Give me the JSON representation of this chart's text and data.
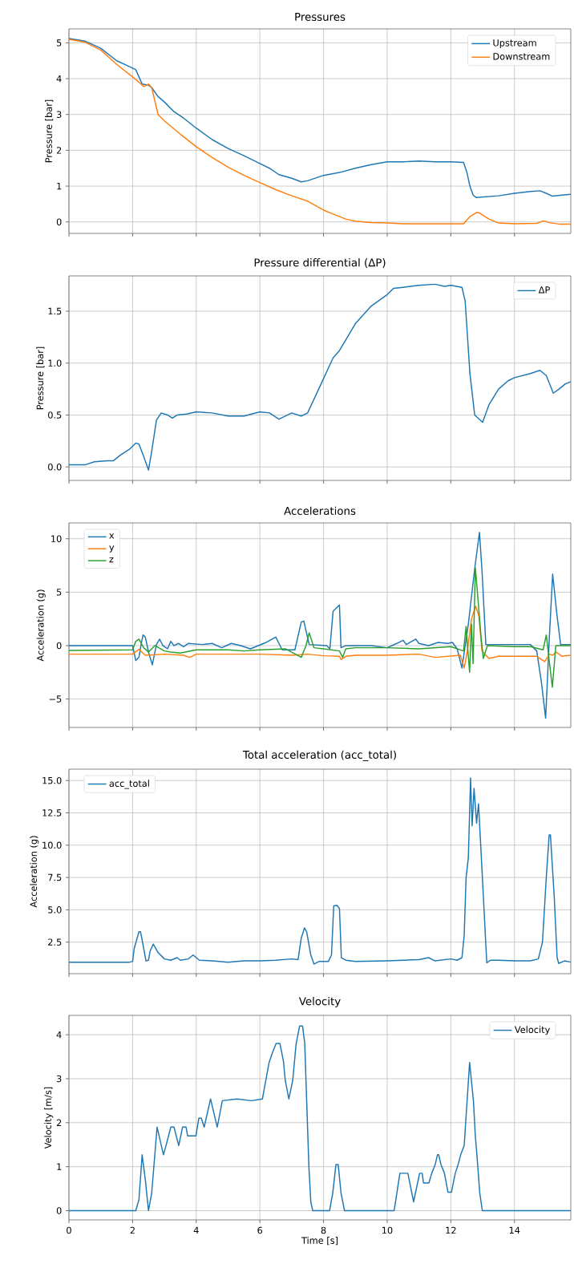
{
  "chart_data": [
    {
      "type": "line",
      "title": "Pressures",
      "ylabel": "Pressure [bar]",
      "xlim": [
        0,
        15.77
      ],
      "ylim": [
        -0.32,
        5.39
      ],
      "xticks": [
        0,
        2,
        4,
        6,
        8,
        10,
        12,
        14
      ],
      "yticks": [
        0,
        1,
        2,
        3,
        4,
        5
      ],
      "tick_labels": "y",
      "grid": true,
      "legend": "top right",
      "series": [
        {
          "name": "Upstream",
          "color": "#1f77b4",
          "x": [
            0,
            0.5,
            1,
            1.5,
            1.8,
            2.1,
            2.3,
            2.5,
            2.6,
            2.8,
            3,
            3.3,
            3.6,
            4,
            4.5,
            5,
            5.5,
            6,
            6.3,
            6.6,
            7,
            7.3,
            7.5,
            8,
            8.5,
            9,
            9.5,
            10,
            10.5,
            11,
            11.5,
            12,
            12.4,
            12.5,
            12.6,
            12.7,
            12.8,
            13.5,
            14,
            14.5,
            14.8,
            15,
            15.2,
            15.5,
            15.77
          ],
          "values": [
            5.12,
            5.05,
            4.85,
            4.5,
            4.38,
            4.25,
            3.85,
            3.82,
            3.75,
            3.5,
            3.35,
            3.08,
            2.9,
            2.62,
            2.3,
            2.05,
            1.85,
            1.63,
            1.5,
            1.32,
            1.22,
            1.12,
            1.15,
            1.3,
            1.38,
            1.5,
            1.6,
            1.68,
            1.68,
            1.7,
            1.68,
            1.68,
            1.66,
            1.4,
            1.0,
            0.75,
            0.68,
            0.73,
            0.8,
            0.85,
            0.87,
            0.8,
            0.72,
            0.75,
            0.77
          ]
        },
        {
          "name": "Downstream",
          "color": "#ff7f0e",
          "x": [
            0,
            0.5,
            1,
            1.5,
            2,
            2.2,
            2.35,
            2.5,
            2.6,
            2.8,
            3,
            3.5,
            4,
            4.5,
            5,
            5.5,
            6,
            6.5,
            7,
            7.5,
            8,
            8.3,
            8.7,
            9,
            9.5,
            10,
            10.5,
            11,
            12,
            12.4,
            12.6,
            12.8,
            12.9,
            13.2,
            13.5,
            14,
            14.7,
            14.9,
            15.1,
            15.4,
            15.77
          ],
          "values": [
            5.1,
            5.02,
            4.8,
            4.4,
            4.05,
            3.9,
            3.78,
            3.85,
            3.75,
            3.0,
            2.82,
            2.45,
            2.1,
            1.8,
            1.53,
            1.3,
            1.1,
            0.9,
            0.73,
            0.58,
            0.33,
            0.22,
            0.08,
            0.02,
            -0.02,
            -0.03,
            -0.05,
            -0.05,
            -0.05,
            -0.05,
            0.15,
            0.26,
            0.25,
            0.08,
            -0.03,
            -0.05,
            -0.04,
            0.03,
            -0.02,
            -0.06,
            -0.06
          ]
        }
      ]
    },
    {
      "type": "line",
      "title": "Pressure differential (ΔP)",
      "ylabel": "Pressure [bar]",
      "xlim": [
        0,
        15.77
      ],
      "ylim": [
        -0.13,
        1.84
      ],
      "xticks": [
        0,
        2,
        4,
        6,
        8,
        10,
        12,
        14
      ],
      "yticks": [
        {
          "value": 0,
          "label": "0.0"
        },
        0.5,
        {
          "value": 1,
          "label": "1.0"
        },
        1.5
      ],
      "tick_labels": "y",
      "grid": true,
      "legend": "top right",
      "series": [
        {
          "name": "ΔP",
          "color": "#1f77b4",
          "x": [
            0,
            0.5,
            0.8,
            1.2,
            1.4,
            1.6,
            1.9,
            2.1,
            2.2,
            2.35,
            2.5,
            2.6,
            2.75,
            2.9,
            3.1,
            3.25,
            3.4,
            3.7,
            4,
            4.5,
            5,
            5.5,
            6,
            6.3,
            6.6,
            7,
            7.3,
            7.5,
            8,
            8.3,
            8.5,
            9,
            9.5,
            10,
            10.2,
            10.5,
            11,
            11.5,
            11.8,
            12,
            12.35,
            12.45,
            12.6,
            12.75,
            13.0,
            13.2,
            13.5,
            13.8,
            14,
            14.5,
            14.8,
            15,
            15.22,
            15.4,
            15.6,
            15.77
          ],
          "values": [
            0.02,
            0.02,
            0.05,
            0.06,
            0.06,
            0.11,
            0.17,
            0.23,
            0.22,
            0.1,
            -0.03,
            0.15,
            0.45,
            0.52,
            0.5,
            0.47,
            0.5,
            0.51,
            0.53,
            0.52,
            0.49,
            0.49,
            0.53,
            0.52,
            0.46,
            0.52,
            0.49,
            0.52,
            0.85,
            1.05,
            1.12,
            1.38,
            1.55,
            1.66,
            1.72,
            1.73,
            1.75,
            1.76,
            1.74,
            1.75,
            1.73,
            1.6,
            0.9,
            0.5,
            0.43,
            0.6,
            0.75,
            0.83,
            0.86,
            0.9,
            0.93,
            0.88,
            0.71,
            0.75,
            0.8,
            0.82
          ]
        }
      ]
    },
    {
      "type": "line",
      "title": "Accelerations",
      "ylabel": "Acceleration (g)",
      "xlim": [
        0,
        15.77
      ],
      "ylim": [
        -7.66,
        11.48
      ],
      "xticks": [
        0,
        2,
        4,
        6,
        8,
        10,
        12,
        14
      ],
      "yticks": [
        {
          "value": -5,
          "label": "−5"
        },
        0,
        5,
        10
      ],
      "tick_labels": "y",
      "grid": true,
      "legend": "top left",
      "series": [
        {
          "name": "x",
          "color": "#1f77b4",
          "x": [
            0,
            2.0,
            2.1,
            2.2,
            2.28,
            2.33,
            2.4,
            2.5,
            2.62,
            2.75,
            2.85,
            2.95,
            3.1,
            3.2,
            3.3,
            3.45,
            3.6,
            3.75,
            4.2,
            4.5,
            4.8,
            5.1,
            5.4,
            5.7,
            6.2,
            6.5,
            6.7,
            7.1,
            7.3,
            7.38,
            7.55,
            8.1,
            8.2,
            8.3,
            8.5,
            8.55,
            8.7,
            9.5,
            10.0,
            10.3,
            10.5,
            10.6,
            10.9,
            11.0,
            11.3,
            11.6,
            11.9,
            12.05,
            12.2,
            12.35,
            12.55,
            12.75,
            12.9,
            12.98,
            13.1,
            13.5,
            14.0,
            14.5,
            14.7,
            14.85,
            14.98,
            15.1,
            15.2,
            15.33,
            15.45,
            15.77
          ],
          "values": [
            0,
            0,
            -1.4,
            -1.1,
            0.3,
            1.0,
            0.8,
            -0.6,
            -1.8,
            0.1,
            0.6,
            0,
            -0.3,
            0.4,
            0,
            0.2,
            -0.1,
            0.2,
            0.1,
            0.2,
            -0.2,
            0.2,
            0,
            -0.3,
            0.3,
            0.8,
            -0.4,
            -0.4,
            2.2,
            2.3,
            0.1,
            0,
            -0.3,
            3.2,
            3.8,
            -0.2,
            0,
            0,
            -0.2,
            0.2,
            0.5,
            0.1,
            0.6,
            0.2,
            0,
            0.3,
            0.2,
            0.3,
            -0.3,
            -2.1,
            2.0,
            7.2,
            10.6,
            7.0,
            0.1,
            0.1,
            0.1,
            0.1,
            -0.5,
            -3.5,
            -6.8,
            1.0,
            6.7,
            3.0,
            0.1,
            0.1
          ]
        },
        {
          "name": "y",
          "color": "#ff7f0e",
          "x": [
            0,
            2,
            2.2,
            2.4,
            3,
            3.6,
            3.8,
            4.0,
            5,
            6,
            7,
            7.5,
            8,
            8.5,
            8.55,
            8.7,
            9,
            10,
            11,
            11.5,
            12.3,
            12.42,
            12.52,
            12.65,
            12.78,
            12.88,
            12.98,
            13.1,
            13.2,
            13.5,
            14,
            14.7,
            14.85,
            14.95,
            15.1,
            15.2,
            15.3,
            15.5,
            15.77
          ],
          "values": [
            -0.8,
            -0.8,
            -0.35,
            -0.9,
            -0.8,
            -0.9,
            -1.1,
            -0.8,
            -0.8,
            -0.8,
            -0.9,
            -0.8,
            -0.95,
            -1.0,
            -1.3,
            -1.0,
            -0.9,
            -0.9,
            -0.8,
            -1.1,
            -0.9,
            -2.1,
            -0.5,
            2.5,
            3.7,
            2.8,
            -0.5,
            -0.9,
            -1.2,
            -1.0,
            -1.0,
            -1.0,
            -1.3,
            -1.5,
            -0.8,
            -0.9,
            -0.6,
            -1.0,
            -0.9
          ]
        },
        {
          "name": "z",
          "color": "#2ca02c",
          "x": [
            0,
            2,
            2.1,
            2.2,
            2.35,
            2.5,
            2.7,
            3,
            3.2,
            3.5,
            4,
            5,
            5.5,
            6,
            6.8,
            7.3,
            7.45,
            7.55,
            7.7,
            8,
            8.5,
            8.6,
            8.7,
            9,
            10,
            11,
            12,
            12.4,
            12.48,
            12.55,
            12.59,
            12.65,
            12.7,
            12.77,
            12.85,
            12.95,
            13.02,
            13.15,
            14,
            14.5,
            14.9,
            15.0,
            15.1,
            15.19,
            15.3,
            15.77
          ],
          "values": [
            -0.45,
            -0.4,
            0.4,
            0.6,
            -0.2,
            -0.6,
            0,
            -0.5,
            -0.6,
            -0.7,
            -0.4,
            -0.4,
            -0.5,
            -0.4,
            -0.3,
            -1.1,
            0,
            1.2,
            -0.2,
            -0.3,
            -0.5,
            -1.1,
            -0.3,
            -0.2,
            -0.2,
            -0.3,
            -0.1,
            -0.5,
            1.8,
            -1.0,
            -2.5,
            2.0,
            -1.7,
            7.3,
            4.5,
            0.8,
            -1.2,
            0,
            -0.1,
            -0.1,
            -0.4,
            1.0,
            -1.6,
            -3.9,
            0,
            0
          ]
        }
      ]
    },
    {
      "type": "line",
      "title": "Total acceleration (acc_total)",
      "ylabel": "Acceleration (g)",
      "xlim": [
        0,
        15.77
      ],
      "ylim": [
        0.06,
        15.88
      ],
      "xticks": [
        0,
        2,
        4,
        6,
        8,
        10,
        12,
        14
      ],
      "yticks": [
        2.5,
        {
          "value": 5,
          "label": "5.0"
        },
        7.5,
        {
          "value": 10,
          "label": "10.0"
        },
        12.5,
        {
          "value": 15,
          "label": "15.0"
        }
      ],
      "tick_labels": "y",
      "grid": true,
      "legend": "top left",
      "series": [
        {
          "name": "acc_total",
          "color": "#1f77b4",
          "x": [
            0,
            1.9,
            2.0,
            2.05,
            2.2,
            2.25,
            2.35,
            2.42,
            2.5,
            2.55,
            2.65,
            2.8,
            3.0,
            3.2,
            3.4,
            3.5,
            3.75,
            3.8,
            3.9,
            4.0,
            4.1,
            4.5,
            5,
            5.5,
            6,
            6.5,
            7.0,
            7.2,
            7.3,
            7.4,
            7.47,
            7.6,
            7.7,
            7.85,
            8.15,
            8.25,
            8.32,
            8.42,
            8.5,
            8.56,
            8.7,
            9,
            10,
            10.5,
            11,
            11.3,
            11.5,
            12,
            12.2,
            12.35,
            12.42,
            12.48,
            12.55,
            12.62,
            12.67,
            12.73,
            12.81,
            12.87,
            12.95,
            13.13,
            13.25,
            13.5,
            14,
            14.5,
            14.75,
            14.88,
            15.0,
            15.09,
            15.13,
            15.25,
            15.34,
            15.39,
            15.57,
            15.77
          ],
          "values": [
            0.95,
            0.95,
            1.0,
            2.0,
            3.3,
            3.3,
            2.0,
            1.05,
            1.1,
            1.8,
            2.35,
            1.7,
            1.2,
            1.1,
            1.3,
            1.1,
            1.2,
            1.3,
            1.5,
            1.3,
            1.1,
            1.05,
            0.95,
            1.05,
            1.05,
            1.1,
            1.2,
            1.15,
            2.8,
            3.6,
            3.3,
            1.5,
            0.8,
            1.0,
            1.0,
            1.5,
            5.3,
            5.35,
            5.1,
            1.3,
            1.1,
            1.0,
            1.05,
            1.1,
            1.15,
            1.3,
            1.05,
            1.2,
            1.1,
            1.3,
            3.0,
            7.5,
            9.0,
            15.2,
            11.5,
            14.4,
            11.7,
            13.2,
            9.5,
            0.9,
            1.1,
            1.1,
            1.05,
            1.05,
            1.2,
            2.5,
            7.5,
            10.8,
            10.8,
            6.0,
            1.3,
            0.85,
            1.05,
            0.95
          ]
        }
      ]
    },
    {
      "type": "line",
      "title": "Velocity",
      "xlabel": "Time [s]",
      "ylabel": "Velocity [m/s]",
      "xlim": [
        0,
        15.77
      ],
      "ylim": [
        -0.21,
        4.44
      ],
      "xticks": [
        0,
        2,
        4,
        6,
        8,
        10,
        12,
        14
      ],
      "yticks": [
        0,
        1,
        2,
        3,
        4
      ],
      "grid": true,
      "legend": "top right",
      "series": [
        {
          "name": "Velocity",
          "color": "#1f77b4",
          "x": [
            0,
            2.1,
            2.2,
            2.3,
            2.4,
            2.5,
            2.6,
            2.77,
            2.97,
            3.05,
            3.13,
            3.2,
            3.3,
            3.45,
            3.57,
            3.68,
            3.73,
            3.99,
            4.08,
            4.16,
            4.25,
            4.45,
            4.66,
            4.82,
            5.28,
            5.74,
            6.08,
            6.29,
            6.4,
            6.51,
            6.63,
            6.74,
            6.8,
            6.91,
            7.03,
            7.14,
            7.25,
            7.34,
            7.41,
            7.54,
            7.6,
            7.66,
            8.19,
            8.29,
            8.39,
            8.46,
            8.55,
            8.66,
            10.22,
            10.4,
            10.65,
            10.83,
            11.02,
            11.1,
            11.14,
            11.31,
            11.4,
            11.51,
            11.58,
            11.62,
            11.69,
            11.8,
            11.91,
            12.02,
            12.14,
            12.23,
            12.31,
            12.42,
            12.59,
            12.71,
            12.77,
            12.82,
            12.91,
            12.99,
            15.77
          ],
          "values": [
            0,
            0,
            0.25,
            1.27,
            0.7,
            0,
            0.4,
            1.9,
            1.27,
            1.48,
            1.7,
            1.9,
            1.9,
            1.48,
            1.9,
            1.9,
            1.7,
            1.7,
            2.1,
            2.1,
            1.9,
            2.54,
            1.9,
            2.5,
            2.54,
            2.5,
            2.54,
            3.37,
            3.6,
            3.8,
            3.8,
            3.4,
            2.95,
            2.54,
            2.95,
            3.8,
            4.2,
            4.2,
            3.8,
            1.0,
            0.2,
            0,
            0,
            0.4,
            1.05,
            1.05,
            0.4,
            0,
            0,
            0.85,
            0.85,
            0.2,
            0.85,
            0.85,
            0.63,
            0.63,
            0.85,
            1.05,
            1.27,
            1.27,
            1.05,
            0.85,
            0.42,
            0.42,
            0.85,
            1.05,
            1.27,
            1.48,
            3.37,
            2.5,
            1.7,
            1.27,
            0.4,
            0,
            0
          ]
        }
      ]
    }
  ]
}
